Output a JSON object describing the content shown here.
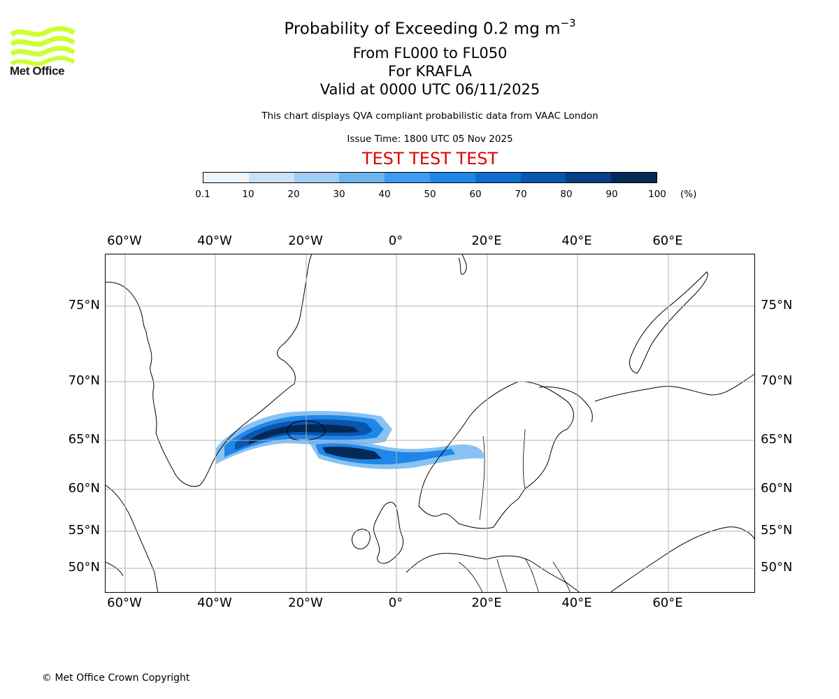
{
  "logo": {
    "text": "Met Office",
    "color": "#ccff33"
  },
  "title": {
    "main": "Probability of Exceeding 0.2 mg m",
    "sup": "−3"
  },
  "subtitle": {
    "levels": "From FL000 to FL050",
    "volcano": "For KRAFLA",
    "valid": "Valid at 0000 UTC 06/11/2025"
  },
  "description": "This chart displays QVA compliant probabilistic data from VAAC London",
  "issue_time": "Issue Time: 1800 UTC 05 Nov 2025",
  "banner": {
    "text": "TEST TEST TEST",
    "color": "#e00000"
  },
  "colorbar": {
    "ticks": [
      "0.1",
      "10",
      "20",
      "30",
      "40",
      "50",
      "60",
      "70",
      "80",
      "90",
      "100"
    ],
    "unit": "(%)",
    "colors": [
      "#eef5fe",
      "#c7e2f9",
      "#9fcdf5",
      "#6cb3f0",
      "#3d9cf0",
      "#1f87e8",
      "#0f6dd0",
      "#0a55ad",
      "#073f84",
      "#042957"
    ]
  },
  "axes": {
    "lon_labels": [
      "60°W",
      "40°W",
      "20°W",
      "0°",
      "20°E",
      "40°E",
      "60°E"
    ],
    "lat_labels": [
      "75°N",
      "70°N",
      "65°N",
      "60°N",
      "55°N",
      "50°N"
    ]
  },
  "copyright": "© Met Office Crown Copyright"
}
